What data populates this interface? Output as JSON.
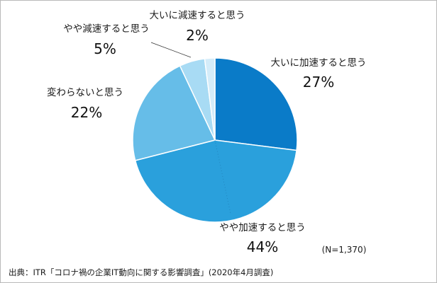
{
  "chart_data": {
    "type": "pie",
    "slices": [
      {
        "label": "大いに加速すると思う",
        "value": 27,
        "display": "27%",
        "color": "#0a7bc8"
      },
      {
        "label": "やや加速すると思う",
        "value": 44,
        "display": "44%",
        "color": "#2aa0dc"
      },
      {
        "label": "変わらないと思う",
        "value": 22,
        "display": "22%",
        "color": "#66bde8"
      },
      {
        "label": "やや減速すると思う",
        "value": 5,
        "display": "5%",
        "color": "#a8dbf4"
      },
      {
        "label": "大いに減速すると思う",
        "value": 2,
        "display": "2%",
        "color": "#d4ecf9"
      }
    ],
    "start": "12 o'clock",
    "direction": "clockwise",
    "sample_note": "(N=1,370)"
  },
  "source": "出典：ITR「コロナ禍の企業IT動向に関する影響調査」(2020年4月調査)"
}
